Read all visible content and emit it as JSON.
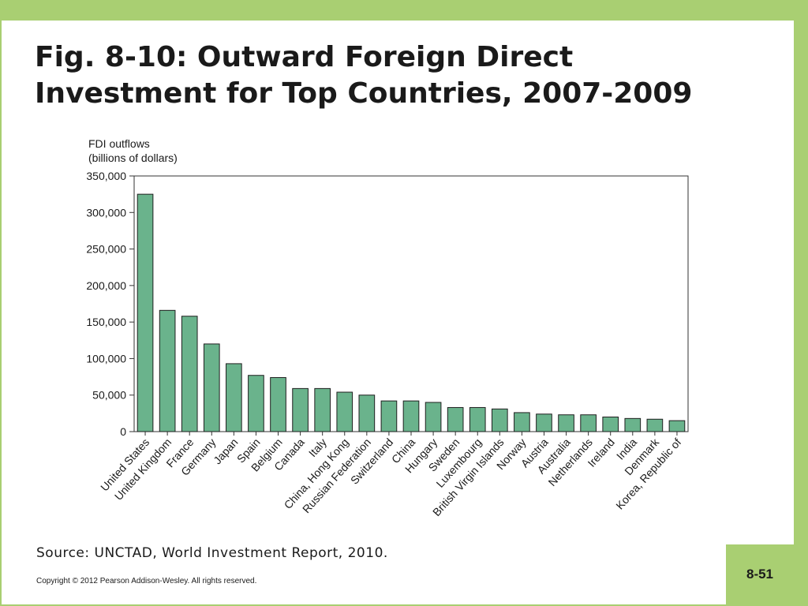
{
  "slide": {
    "title_line1": "Fig. 8-10: Outward Foreign Direct",
    "title_line2": "Investment for Top Countries, 2007-2009",
    "source": "Source: UNCTAD, World Investment Report, 2010.",
    "copyright": "Copyright © 2012 Pearson Addison-Wesley. All rights reserved.",
    "slide_number": "8-51",
    "accent_color": "#a9cf72"
  },
  "chart_data": {
    "type": "bar",
    "title": "",
    "ylabel_line1": "FDI outflows",
    "ylabel_line2": "(billions of dollars)",
    "xlabel": "",
    "ylim": [
      0,
      350000
    ],
    "yticks": [
      0,
      50000,
      100000,
      150000,
      200000,
      250000,
      300000,
      350000
    ],
    "ytick_labels": [
      "0",
      "50,000",
      "100,000",
      "150,000",
      "200,000",
      "250,000",
      "300,000",
      "350,000"
    ],
    "grid": false,
    "bar_color": "#6ab38c",
    "categories": [
      "United States",
      "United Kingdom",
      "France",
      "Germany",
      "Japan",
      "Spain",
      "Belgium",
      "Canada",
      "Italy",
      "China, Hong Kong",
      "Russian Federation",
      "Switzerland",
      "China",
      "Hungary",
      "Sweden",
      "Luxembourg",
      "British Virgin Islands",
      "Norway",
      "Austria",
      "Australia",
      "Netherlands",
      "Ireland",
      "India",
      "Denmark",
      "Korea, Republic of"
    ],
    "values": [
      325000,
      166000,
      158000,
      120000,
      93000,
      77000,
      74000,
      59000,
      59000,
      54000,
      50000,
      42000,
      42000,
      40000,
      33000,
      33000,
      31000,
      26000,
      24000,
      23000,
      23000,
      20000,
      18000,
      17000,
      15000
    ]
  }
}
